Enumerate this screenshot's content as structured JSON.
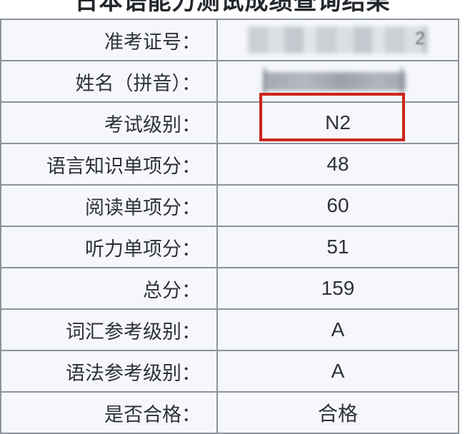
{
  "page": {
    "title": "日本语能力测试成绩查询结果"
  },
  "colors": {
    "cell_background": "#f5f7fa",
    "border_gray": "#8d939b",
    "text": "#2e3238",
    "highlight_red": "#cd241d"
  },
  "table": {
    "rows": [
      {
        "label": "准考证号：",
        "value": "",
        "redacted": true,
        "visible_suffix": "2"
      },
      {
        "label": "姓名（拼音）：",
        "value": "",
        "redacted": true
      },
      {
        "label": "考试级别：",
        "value": "N2",
        "highlighted": true
      },
      {
        "label": "语言知识单项分：",
        "value": "48"
      },
      {
        "label": "阅读单项分：",
        "value": "60"
      },
      {
        "label": "听力单项分：",
        "value": "51"
      },
      {
        "label": "总分：",
        "value": "159"
      },
      {
        "label": "词汇参考级别：",
        "value": "A"
      },
      {
        "label": "语法参考级别：",
        "value": "A"
      },
      {
        "label": "是否合格：",
        "value": "合格"
      }
    ]
  }
}
